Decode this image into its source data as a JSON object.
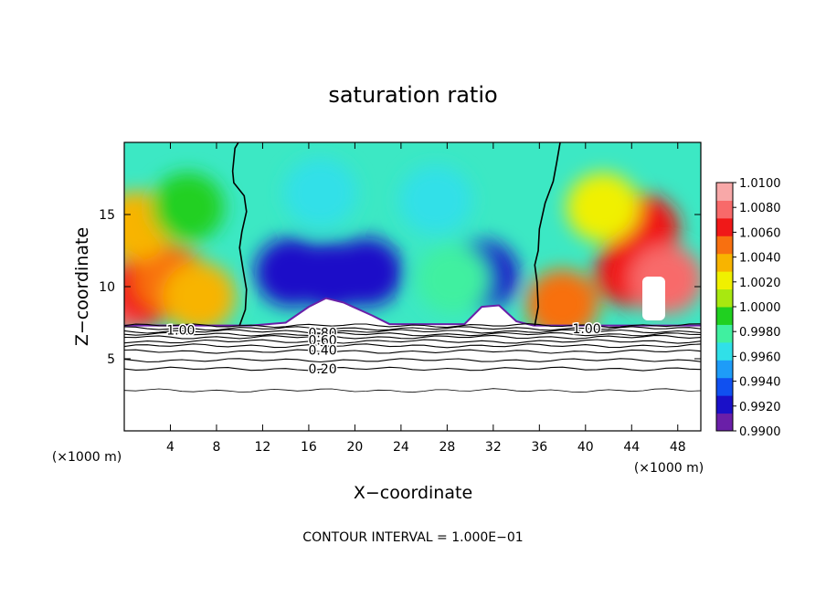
{
  "chart_data": {
    "type": "heatmap",
    "title": "saturation ratio",
    "xlabel": "X−coordinate",
    "ylabel": "Z−coordinate",
    "x_unit_left": "(×1000 m)",
    "x_unit_right": "(×1000 m)",
    "xlim": [
      0,
      50
    ],
    "ylim": [
      0,
      20
    ],
    "x_ticks": [
      4,
      8,
      12,
      16,
      20,
      24,
      28,
      32,
      36,
      40,
      44,
      48
    ],
    "y_ticks": [
      5,
      10,
      15
    ],
    "footer": "CONTOUR INTERVAL = 1.000E−01",
    "colorbar": {
      "labels": [
        "1.0100",
        "1.0080",
        "1.0060",
        "1.0040",
        "1.0020",
        "1.0000",
        "0.9980",
        "0.9960",
        "0.9940",
        "0.9920",
        "0.9900"
      ],
      "range": [
        0.99,
        1.01
      ],
      "colors": [
        "#6a1fa8",
        "#1a10c8",
        "#1050f0",
        "#1e9cf8",
        "#30e0e8",
        "#40f0a0",
        "#20d020",
        "#a8e810",
        "#f0f000",
        "#f8b400",
        "#f87010",
        "#f01818",
        "#f86a6a",
        "#f8a8a8"
      ]
    },
    "contour_labels": [
      {
        "text": "1.00",
        "x": 4.9,
        "z": 7.0
      },
      {
        "text": "1.00",
        "x": 40.1,
        "z": 7.1
      },
      {
        "text": "0.80",
        "x": 17.2,
        "z": 6.8
      },
      {
        "text": "0.60",
        "x": 17.2,
        "z": 6.3
      },
      {
        "text": "0.40",
        "x": 17.2,
        "z": 5.6
      },
      {
        "text": "0.20",
        "x": 17.2,
        "z": 4.3
      }
    ],
    "contour_levels_z": [
      7.3,
      7.1,
      6.9,
      6.7,
      6.5,
      6.2,
      5.9,
      5.5,
      4.9,
      4.3,
      2.8
    ],
    "base_z": 7.3,
    "clear_region": [
      [
        0,
        7.3
      ],
      [
        11,
        7.3
      ],
      [
        14,
        7.5
      ],
      [
        16,
        8.6
      ],
      [
        17.5,
        9.2
      ],
      [
        19,
        8.9
      ],
      [
        21.5,
        8.0
      ],
      [
        23,
        7.4
      ],
      [
        29.5,
        7.4
      ],
      [
        31,
        8.6
      ],
      [
        32.5,
        8.7
      ],
      [
        34,
        7.6
      ],
      [
        35.5,
        7.3
      ],
      [
        50,
        7.3
      ]
    ],
    "saturation_fields": [
      {
        "x": 0.5,
        "z": 9.3,
        "value": 1.0085
      },
      {
        "x": 2.0,
        "z": 9.8,
        "value": 1.0064
      },
      {
        "x": 4.0,
        "z": 10.5,
        "value": 1.0048
      },
      {
        "x": 6.5,
        "z": 9.3,
        "value": 1.0036
      },
      {
        "x": 1.0,
        "z": 14.2,
        "value": 1.003
      },
      {
        "x": 5.5,
        "z": 15.5,
        "value": 0.9998
      },
      {
        "x": 14.5,
        "z": 11.0,
        "value": 0.9918
      },
      {
        "x": 18.0,
        "z": 10.7,
        "value": 0.992
      },
      {
        "x": 21.0,
        "z": 11.0,
        "value": 0.9928
      },
      {
        "x": 31.0,
        "z": 10.8,
        "value": 0.9922
      },
      {
        "x": 17.0,
        "z": 16.5,
        "value": 0.9968
      },
      {
        "x": 27.0,
        "z": 16.0,
        "value": 0.997
      },
      {
        "x": 28.5,
        "z": 10.5,
        "value": 0.9985
      },
      {
        "x": 45.0,
        "z": 14.0,
        "value": 1.0062
      },
      {
        "x": 44.0,
        "z": 11.0,
        "value": 1.0066
      },
      {
        "x": 38.0,
        "z": 8.8,
        "value": 1.005
      },
      {
        "x": 47.0,
        "z": 10.5,
        "value": 1.0076
      },
      {
        "x": 41.5,
        "z": 15.5,
        "value": 1.0018
      }
    ],
    "unity_contours": [
      [
        [
          10.0,
          7.3
        ],
        [
          10.5,
          8.4
        ],
        [
          10.6,
          9.8
        ],
        [
          10.3,
          11.2
        ],
        [
          10.0,
          12.7
        ],
        [
          10.2,
          13.8
        ],
        [
          10.6,
          15.2
        ],
        [
          10.4,
          16.3
        ],
        [
          9.5,
          17.2
        ],
        [
          9.4,
          18.0
        ],
        [
          9.6,
          19.6
        ],
        [
          9.9,
          20
        ]
      ],
      [
        [
          35.6,
          7.3
        ],
        [
          35.9,
          8.6
        ],
        [
          35.8,
          10.3
        ],
        [
          35.6,
          11.5
        ],
        [
          35.9,
          12.5
        ],
        [
          36.0,
          14.0
        ],
        [
          36.5,
          15.8
        ],
        [
          37.2,
          17.3
        ],
        [
          37.5,
          18.6
        ],
        [
          37.8,
          20
        ]
      ]
    ]
  }
}
